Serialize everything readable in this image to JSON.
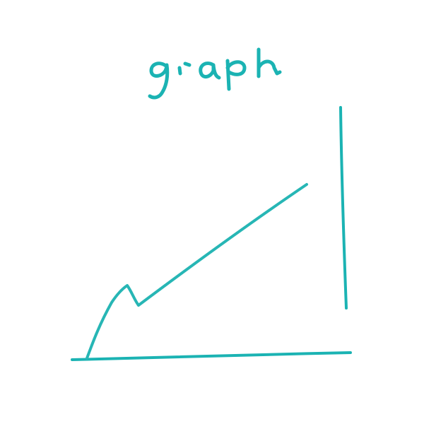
{
  "sketch": {
    "title": "graph",
    "ink_color": "#1BB3B3",
    "ink_color_thin": "#27B6B5"
  }
}
